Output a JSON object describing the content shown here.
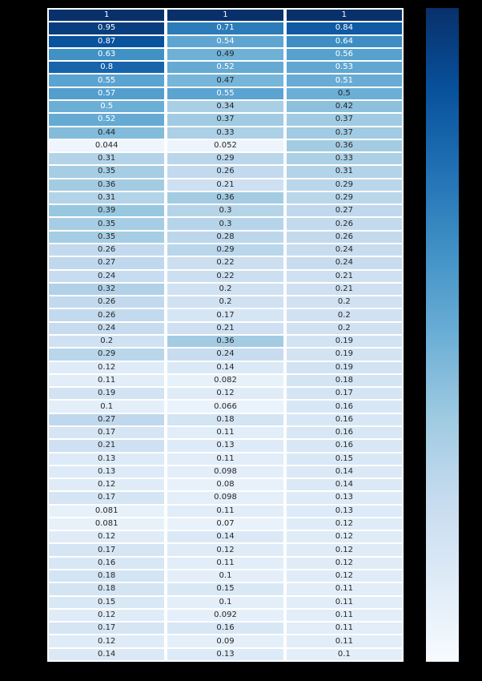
{
  "figure": {
    "background_color": "#000000"
  },
  "chart_data": {
    "type": "heatmap",
    "title": "",
    "xlabel": "",
    "ylabel": "",
    "n_rows": 50,
    "n_cols": 3,
    "vmin": 0,
    "vmax": 1,
    "colormap": "Blues",
    "colormap_stops": [
      "#f7fbff",
      "#deebf7",
      "#c6dbef",
      "#9ecae1",
      "#6baed6",
      "#4292c6",
      "#2171b5",
      "#08519c",
      "#08306b"
    ],
    "annotation_colors": {
      "light_text": "#ffffff",
      "dark_text": "#262626"
    },
    "cells": [
      [
        "1",
        "1",
        "1"
      ],
      [
        "0.95",
        "0.71",
        "0.84"
      ],
      [
        "0.87",
        "0.54",
        "0.64"
      ],
      [
        "0.63",
        "0.49",
        "0.56"
      ],
      [
        "0.8",
        "0.52",
        "0.53"
      ],
      [
        "0.55",
        "0.47",
        "0.51"
      ],
      [
        "0.57",
        "0.55",
        "0.5"
      ],
      [
        "0.5",
        "0.34",
        "0.42"
      ],
      [
        "0.52",
        "0.37",
        "0.37"
      ],
      [
        "0.44",
        "0.33",
        "0.37"
      ],
      [
        "0.044",
        "0.052",
        "0.36"
      ],
      [
        "0.31",
        "0.29",
        "0.33"
      ],
      [
        "0.35",
        "0.26",
        "0.31"
      ],
      [
        "0.36",
        "0.21",
        "0.29"
      ],
      [
        "0.31",
        "0.36",
        "0.29"
      ],
      [
        "0.39",
        "0.3",
        "0.27"
      ],
      [
        "0.35",
        "0.3",
        "0.26"
      ],
      [
        "0.35",
        "0.28",
        "0.26"
      ],
      [
        "0.26",
        "0.29",
        "0.24"
      ],
      [
        "0.27",
        "0.22",
        "0.24"
      ],
      [
        "0.24",
        "0.22",
        "0.21"
      ],
      [
        "0.32",
        "0.2",
        "0.21"
      ],
      [
        "0.26",
        "0.2",
        "0.2"
      ],
      [
        "0.26",
        "0.17",
        "0.2"
      ],
      [
        "0.24",
        "0.21",
        "0.2"
      ],
      [
        "0.2",
        "0.36",
        "0.19"
      ],
      [
        "0.29",
        "0.24",
        "0.19"
      ],
      [
        "0.12",
        "0.14",
        "0.19"
      ],
      [
        "0.11",
        "0.082",
        "0.18"
      ],
      [
        "0.19",
        "0.12",
        "0.17"
      ],
      [
        "0.1",
        "0.066",
        "0.16"
      ],
      [
        "0.27",
        "0.18",
        "0.16"
      ],
      [
        "0.17",
        "0.11",
        "0.16"
      ],
      [
        "0.21",
        "0.13",
        "0.16"
      ],
      [
        "0.13",
        "0.11",
        "0.15"
      ],
      [
        "0.13",
        "0.098",
        "0.14"
      ],
      [
        "0.12",
        "0.08",
        "0.14"
      ],
      [
        "0.17",
        "0.098",
        "0.13"
      ],
      [
        "0.081",
        "0.11",
        "0.13"
      ],
      [
        "0.081",
        "0.07",
        "0.12"
      ],
      [
        "0.12",
        "0.14",
        "0.12"
      ],
      [
        "0.17",
        "0.12",
        "0.12"
      ],
      [
        "0.16",
        "0.11",
        "0.12"
      ],
      [
        "0.18",
        "0.1",
        "0.12"
      ],
      [
        "0.18",
        "0.15",
        "0.11"
      ],
      [
        "0.15",
        "0.1",
        "0.11"
      ],
      [
        "0.12",
        "0.092",
        "0.11"
      ],
      [
        "0.17",
        "0.16",
        "0.11"
      ],
      [
        "0.12",
        "0.09",
        "0.11"
      ],
      [
        "0.14",
        "0.13",
        "0.1"
      ]
    ],
    "colorbar": {
      "orientation": "vertical",
      "position": "right",
      "top_value": 1,
      "bottom_value": 0,
      "top_color": "#08306b",
      "bottom_color": "#f7fbff"
    }
  }
}
